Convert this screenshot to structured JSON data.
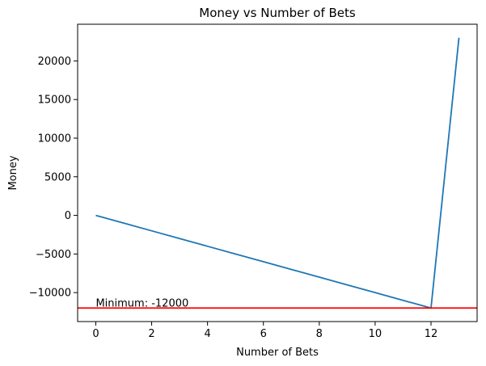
{
  "chart_data": {
    "type": "line",
    "title": "Money vs Number of Bets",
    "xlabel": "Number of Bets",
    "ylabel": "Money",
    "x": [
      0,
      1,
      2,
      3,
      4,
      5,
      6,
      7,
      8,
      9,
      10,
      11,
      12,
      13
    ],
    "values": [
      0,
      -1000,
      -2000,
      -3000,
      -4000,
      -5000,
      -6000,
      -7000,
      -8000,
      -9000,
      -10000,
      -11000,
      -12000,
      23000
    ],
    "color": "#1f77b4",
    "xlim": [
      -0.65,
      13.65
    ],
    "xticks": [
      0,
      2,
      4,
      6,
      8,
      10,
      12
    ],
    "ylim": [
      -13750,
      24750
    ],
    "yticks": [
      {
        "value": -10000,
        "label": "−10000"
      },
      {
        "value": -5000,
        "label": "−5000"
      },
      0,
      5000,
      10000,
      15000,
      20000
    ],
    "hline": {
      "value": -12000,
      "color": "#ff0000"
    },
    "annotation": {
      "text": "Minimum: -12000",
      "x": 0,
      "y": -12000
    }
  }
}
